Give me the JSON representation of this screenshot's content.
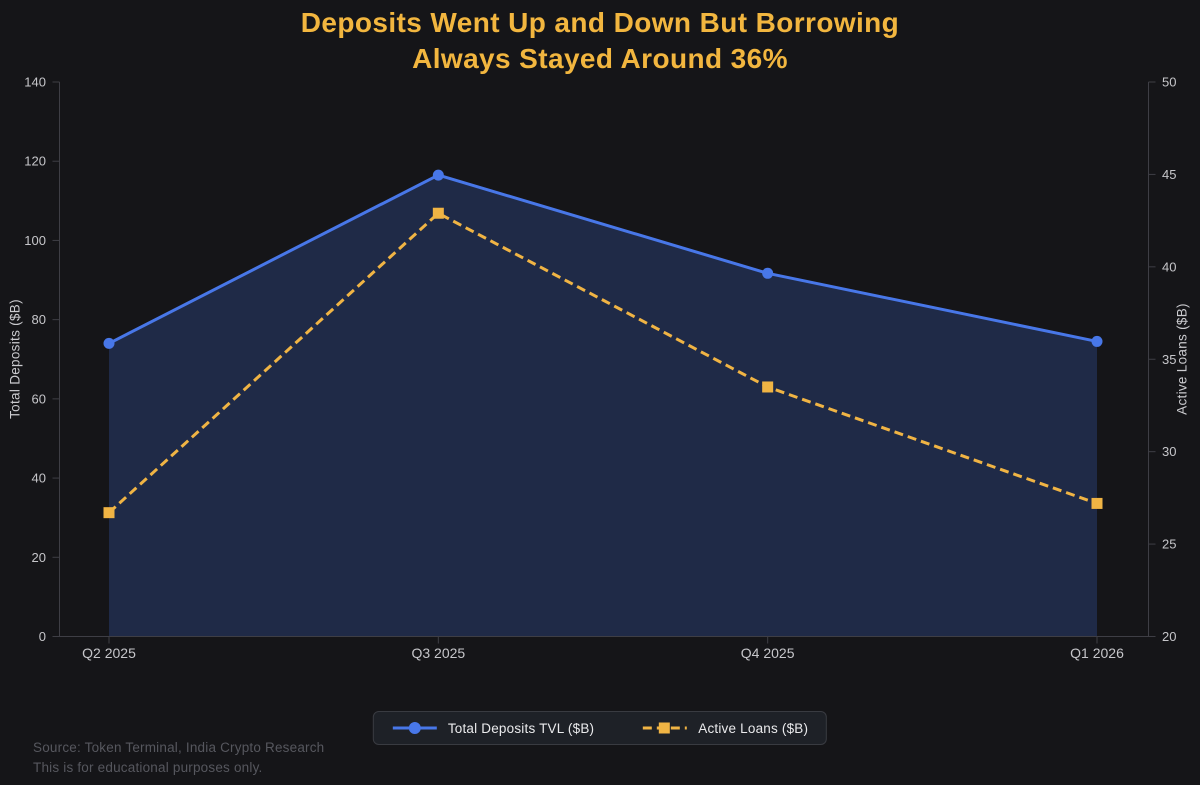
{
  "title": {
    "line1": "Deposits Went Up and Down But Borrowing",
    "line2": "Always Stayed Around 36%"
  },
  "chart_data": {
    "type": "line",
    "categories": [
      "Q2 2025",
      "Q3 2025",
      "Q4 2025",
      "Q1 2026"
    ],
    "series": [
      {
        "name": "Total Deposits TVL ($B)",
        "axis": "left",
        "values": [
          74,
          116.5,
          91.7,
          74.5
        ],
        "color": "#4877e8",
        "style": "solid",
        "marker": "circle",
        "area_fill": "#1f2a47"
      },
      {
        "name": "Active Loans ($B)",
        "axis": "right",
        "values": [
          26.7,
          42.9,
          33.5,
          27.2
        ],
        "color": "#f0b444",
        "style": "dashed",
        "marker": "square"
      }
    ],
    "left_axis": {
      "label": "Total Deposits ($B)",
      "min": 0,
      "max": 140,
      "ticks": [
        0,
        20,
        40,
        60,
        80,
        100,
        120,
        140
      ]
    },
    "right_axis": {
      "label": "Active Loans ($B)",
      "min": 20,
      "max": 50,
      "ticks": [
        20,
        25,
        30,
        35,
        40,
        45,
        50
      ]
    },
    "grid": false,
    "legend": {
      "position": "bottom-center"
    }
  },
  "footer": {
    "source_line1": "Source: Token Terminal, India Crypto Research",
    "source_line2": "This is for educational purposes only."
  },
  "colors": {
    "background": "#151518",
    "title": "#f2b63f",
    "deposits_blue": "#4877e8",
    "loans_gold": "#f0b444",
    "area_fill": "#1f2a47",
    "spine": "#3e3e45",
    "tick_label": "#c6c6ca",
    "legend_bg": "#1e2127",
    "legend_border": "#393b41",
    "legend_text": "#eaeaec",
    "source_text": "#56575e"
  }
}
